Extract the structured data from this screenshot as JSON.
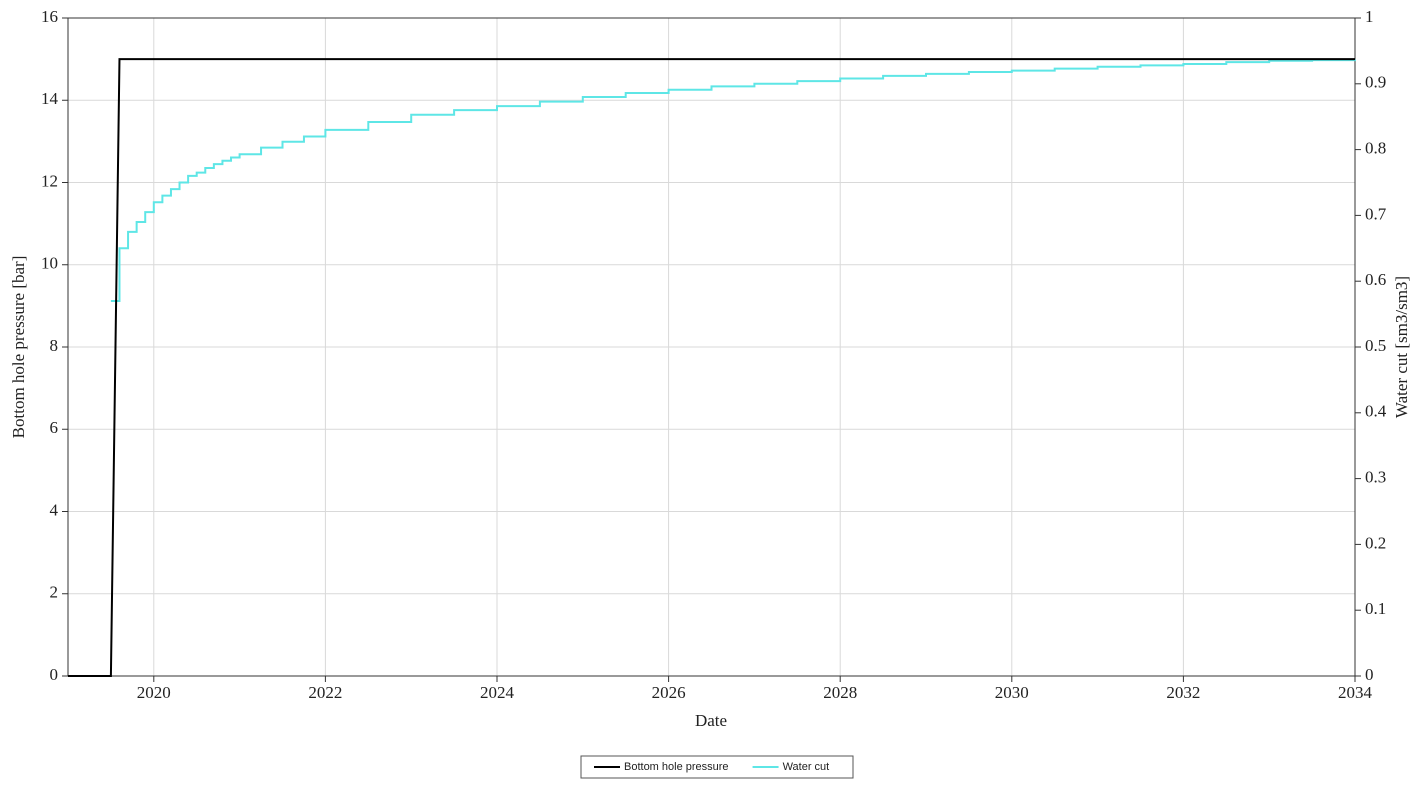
{
  "chart_data": {
    "type": "line",
    "x_label": "Date",
    "y_label": "Bottom hole pressure [bar]",
    "y2_label": "Water cut [sm3/sm3]",
    "xlim": [
      2019,
      2034
    ],
    "xticks": [
      2020,
      2022,
      2024,
      2026,
      2028,
      2030,
      2032,
      2034
    ],
    "ylim": [
      0,
      16
    ],
    "yticks": [
      0,
      2,
      4,
      6,
      8,
      10,
      12,
      14,
      16
    ],
    "y2lim": [
      0,
      1
    ],
    "y2ticks": [
      0,
      0.1,
      0.2,
      0.3,
      0.4,
      0.5,
      0.6,
      0.7,
      0.8,
      0.9,
      1
    ],
    "grid": true,
    "legend": "bottom",
    "series": [
      {
        "name": "Bottom hole pressure",
        "color": "#000000",
        "drawstyle": "linear",
        "x": [
          2019,
          2019.5,
          2019.6,
          2034
        ],
        "values": [
          0,
          0,
          15,
          15
        ]
      },
      {
        "name": "Water cut",
        "color": "#5ee6e6",
        "axis": "y2",
        "drawstyle": "steps-post",
        "x": [
          2019.5,
          2019.6,
          2019.7,
          2019.8,
          2019.9,
          2020.0,
          2020.1,
          2020.2,
          2020.3,
          2020.4,
          2020.5,
          2020.6,
          2020.7,
          2020.8,
          2020.9,
          2021.0,
          2021.25,
          2021.5,
          2021.75,
          2022.0,
          2022.5,
          2023.0,
          2023.5,
          2024.0,
          2024.5,
          2025.0,
          2025.5,
          2026.0,
          2026.5,
          2027.0,
          2027.5,
          2028.0,
          2028.5,
          2029.0,
          2029.5,
          2030.0,
          2030.5,
          2031.0,
          2031.5,
          2032.0,
          2032.5,
          2033.0,
          2033.5,
          2034.0
        ],
        "values": [
          0.57,
          0.65,
          0.675,
          0.69,
          0.705,
          0.72,
          0.73,
          0.74,
          0.75,
          0.76,
          0.765,
          0.772,
          0.778,
          0.783,
          0.788,
          0.793,
          0.803,
          0.812,
          0.82,
          0.83,
          0.842,
          0.853,
          0.86,
          0.866,
          0.873,
          0.88,
          0.886,
          0.891,
          0.896,
          0.9,
          0.904,
          0.908,
          0.912,
          0.915,
          0.918,
          0.92,
          0.923,
          0.926,
          0.928,
          0.93,
          0.933,
          0.935,
          0.936,
          0.937
        ]
      }
    ]
  }
}
